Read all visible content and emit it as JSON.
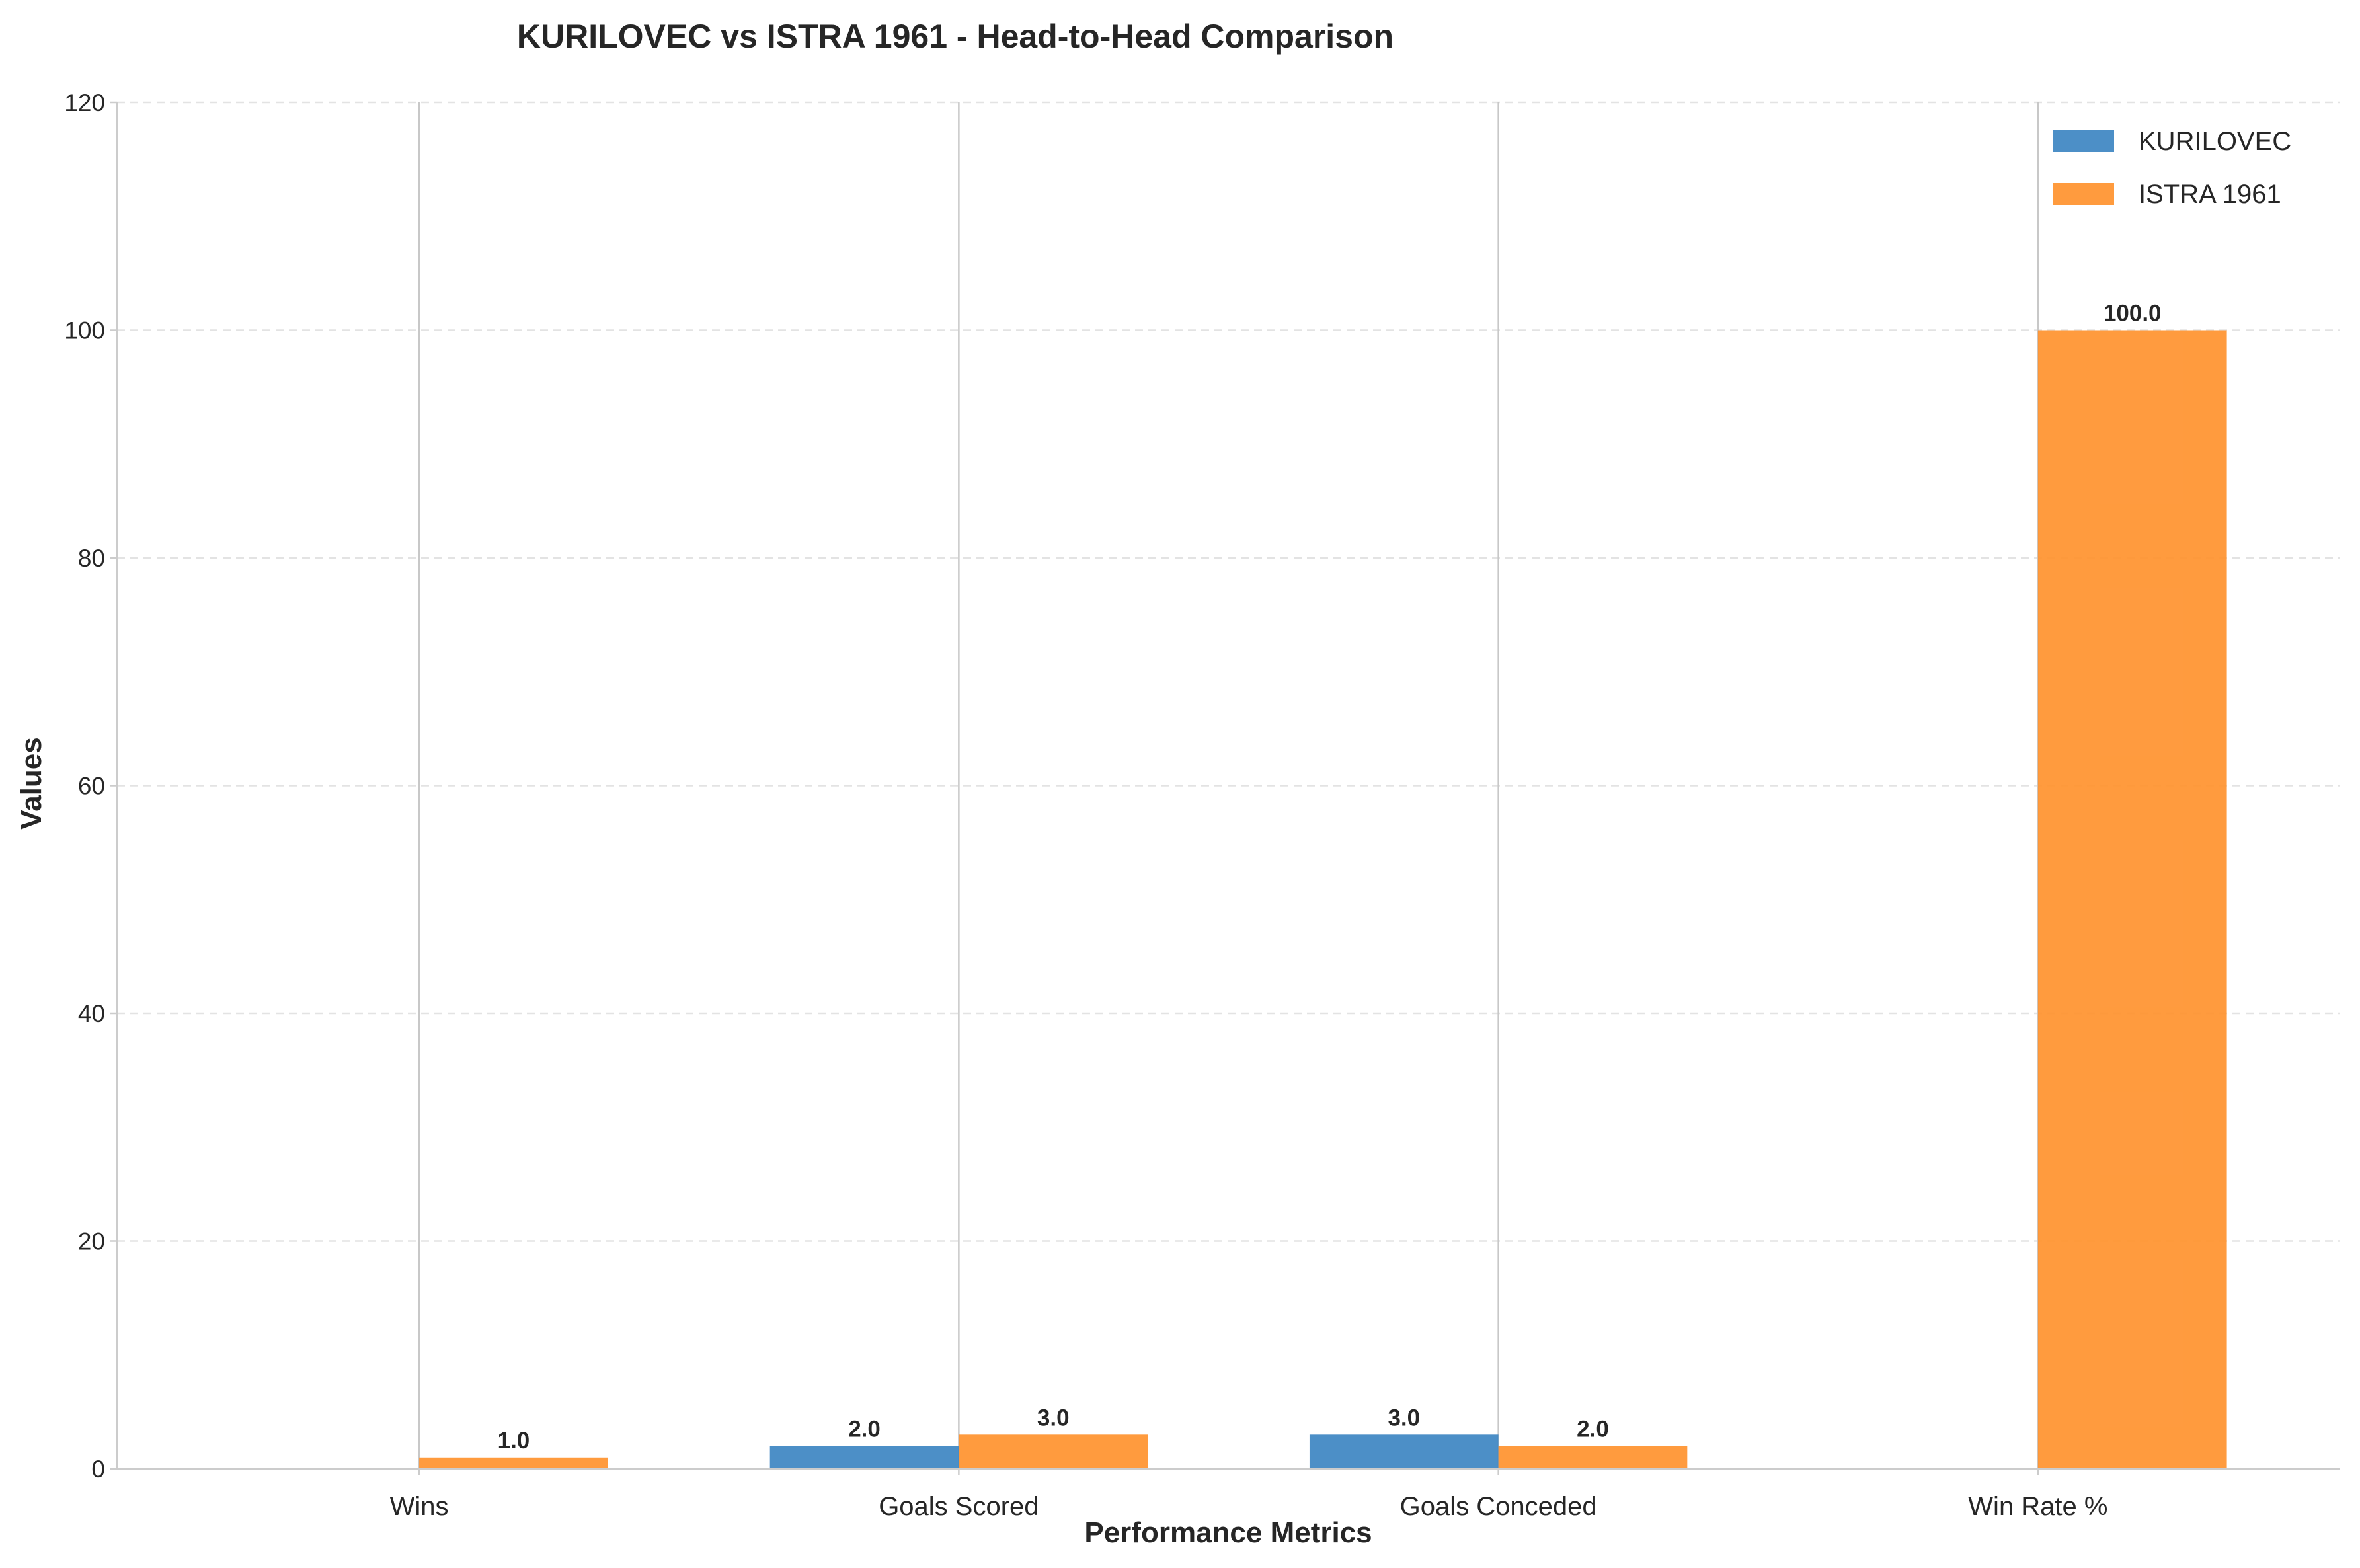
{
  "chart_data": {
    "type": "bar",
    "title": "KURILOVEC vs ISTRA 1961 - Head-to-Head Comparison",
    "xlabel": "Performance Metrics",
    "ylabel": "Values",
    "categories": [
      "Wins",
      "Goals Scored",
      "Goals Conceded",
      "Win Rate %"
    ],
    "series": [
      {
        "name": "KURILOVEC",
        "color": "#3d85c2",
        "values": [
          0.0,
          2.0,
          3.0,
          0.0
        ]
      },
      {
        "name": "ISTRA 1961",
        "color": "#ff922e",
        "values": [
          1.0,
          3.0,
          2.0,
          100.0
        ]
      }
    ],
    "ylim": [
      0,
      120
    ],
    "yticks": [
      0,
      20,
      40,
      60,
      80,
      100,
      120
    ],
    "grid": true,
    "legend_position": "top-right",
    "data_label_format": "one-decimal"
  }
}
